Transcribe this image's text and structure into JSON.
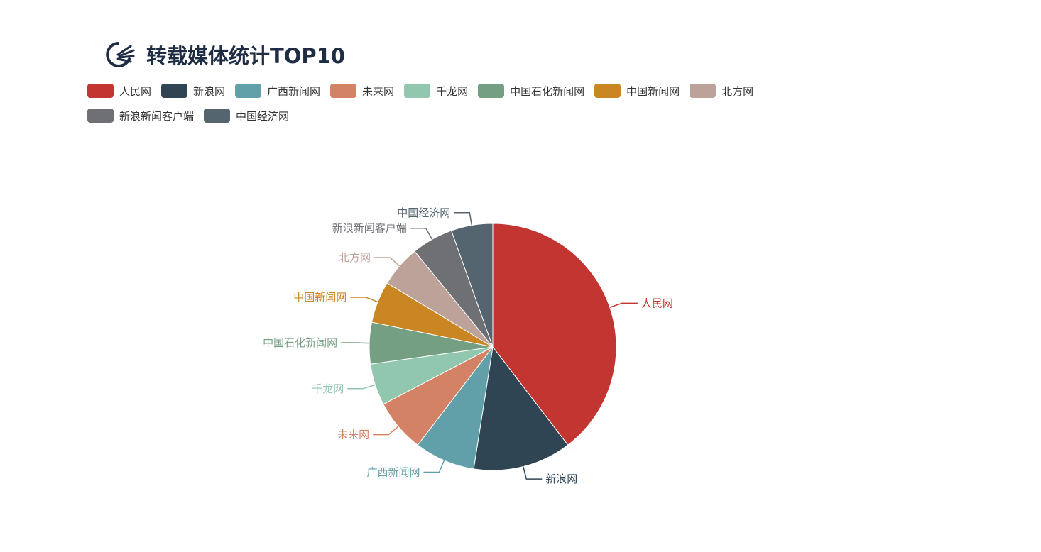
{
  "header": {
    "title": "转载媒体统计TOP10",
    "icon": "pie-chart-icon"
  },
  "chart_data": {
    "type": "pie",
    "title": "转载媒体统计TOP10",
    "legend_position": "top-left",
    "categories": [
      "人民网",
      "新浪网",
      "广西新闻网",
      "未来网",
      "千龙网",
      "中国石化新闻网",
      "中国新闻网",
      "北方网",
      "新浪新闻客户端",
      "中国经济网"
    ],
    "values": [
      40,
      13,
      8,
      7,
      5.5,
      5.5,
      5.5,
      5.5,
      5.5,
      5.5
    ],
    "colors": [
      "#c23531",
      "#2f4554",
      "#61a0a8",
      "#d48265",
      "#91c7ae",
      "#749f83",
      "#ca8622",
      "#bda29a",
      "#6e7074",
      "#546570"
    ]
  }
}
